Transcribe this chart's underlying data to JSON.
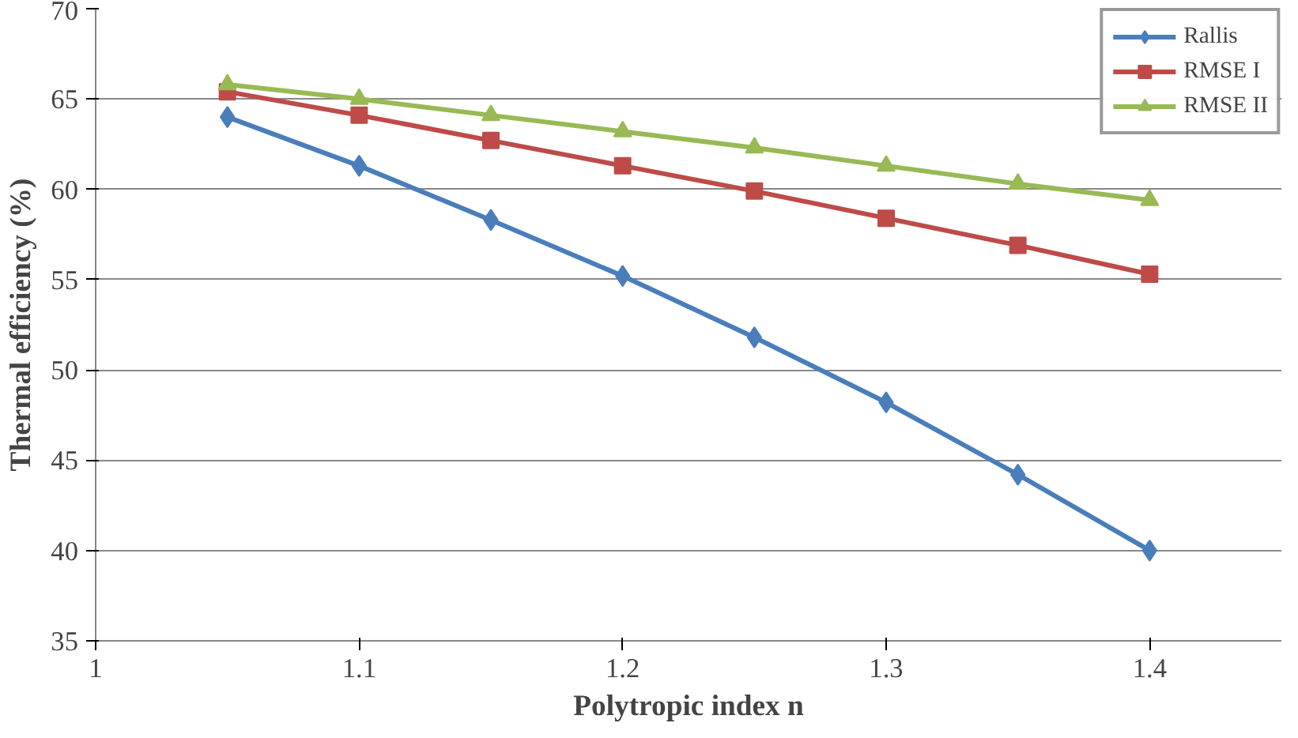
{
  "chart_data": {
    "type": "line",
    "xlabel": "Polytropic index n",
    "ylabel": "Thermal efficiency (%)",
    "x": [
      1.05,
      1.1,
      1.15,
      1.2,
      1.25,
      1.3,
      1.35,
      1.4
    ],
    "series": [
      {
        "name": "Rallis",
        "color": "#4a7ebb",
        "marker": "diamond",
        "values": [
          64.0,
          61.3,
          58.3,
          55.2,
          51.8,
          48.2,
          44.2,
          40.0
        ]
      },
      {
        "name": "RMSE I",
        "color": "#be4b48",
        "marker": "square",
        "values": [
          65.4,
          64.1,
          62.7,
          61.3,
          59.9,
          58.4,
          56.9,
          55.3
        ]
      },
      {
        "name": "RMSE II",
        "color": "#98b954",
        "marker": "triangle",
        "values": [
          65.8,
          65.0,
          64.1,
          63.2,
          62.3,
          61.3,
          60.3,
          59.4
        ]
      }
    ],
    "xlim": [
      1,
      1.45
    ],
    "ylim": [
      35,
      70
    ],
    "xticks": [
      1,
      1.1,
      1.2,
      1.3,
      1.4
    ],
    "yticks": [
      35,
      40,
      45,
      50,
      55,
      60,
      65,
      70
    ],
    "grid": "y",
    "legend": "top right",
    "line_style": "solid"
  }
}
